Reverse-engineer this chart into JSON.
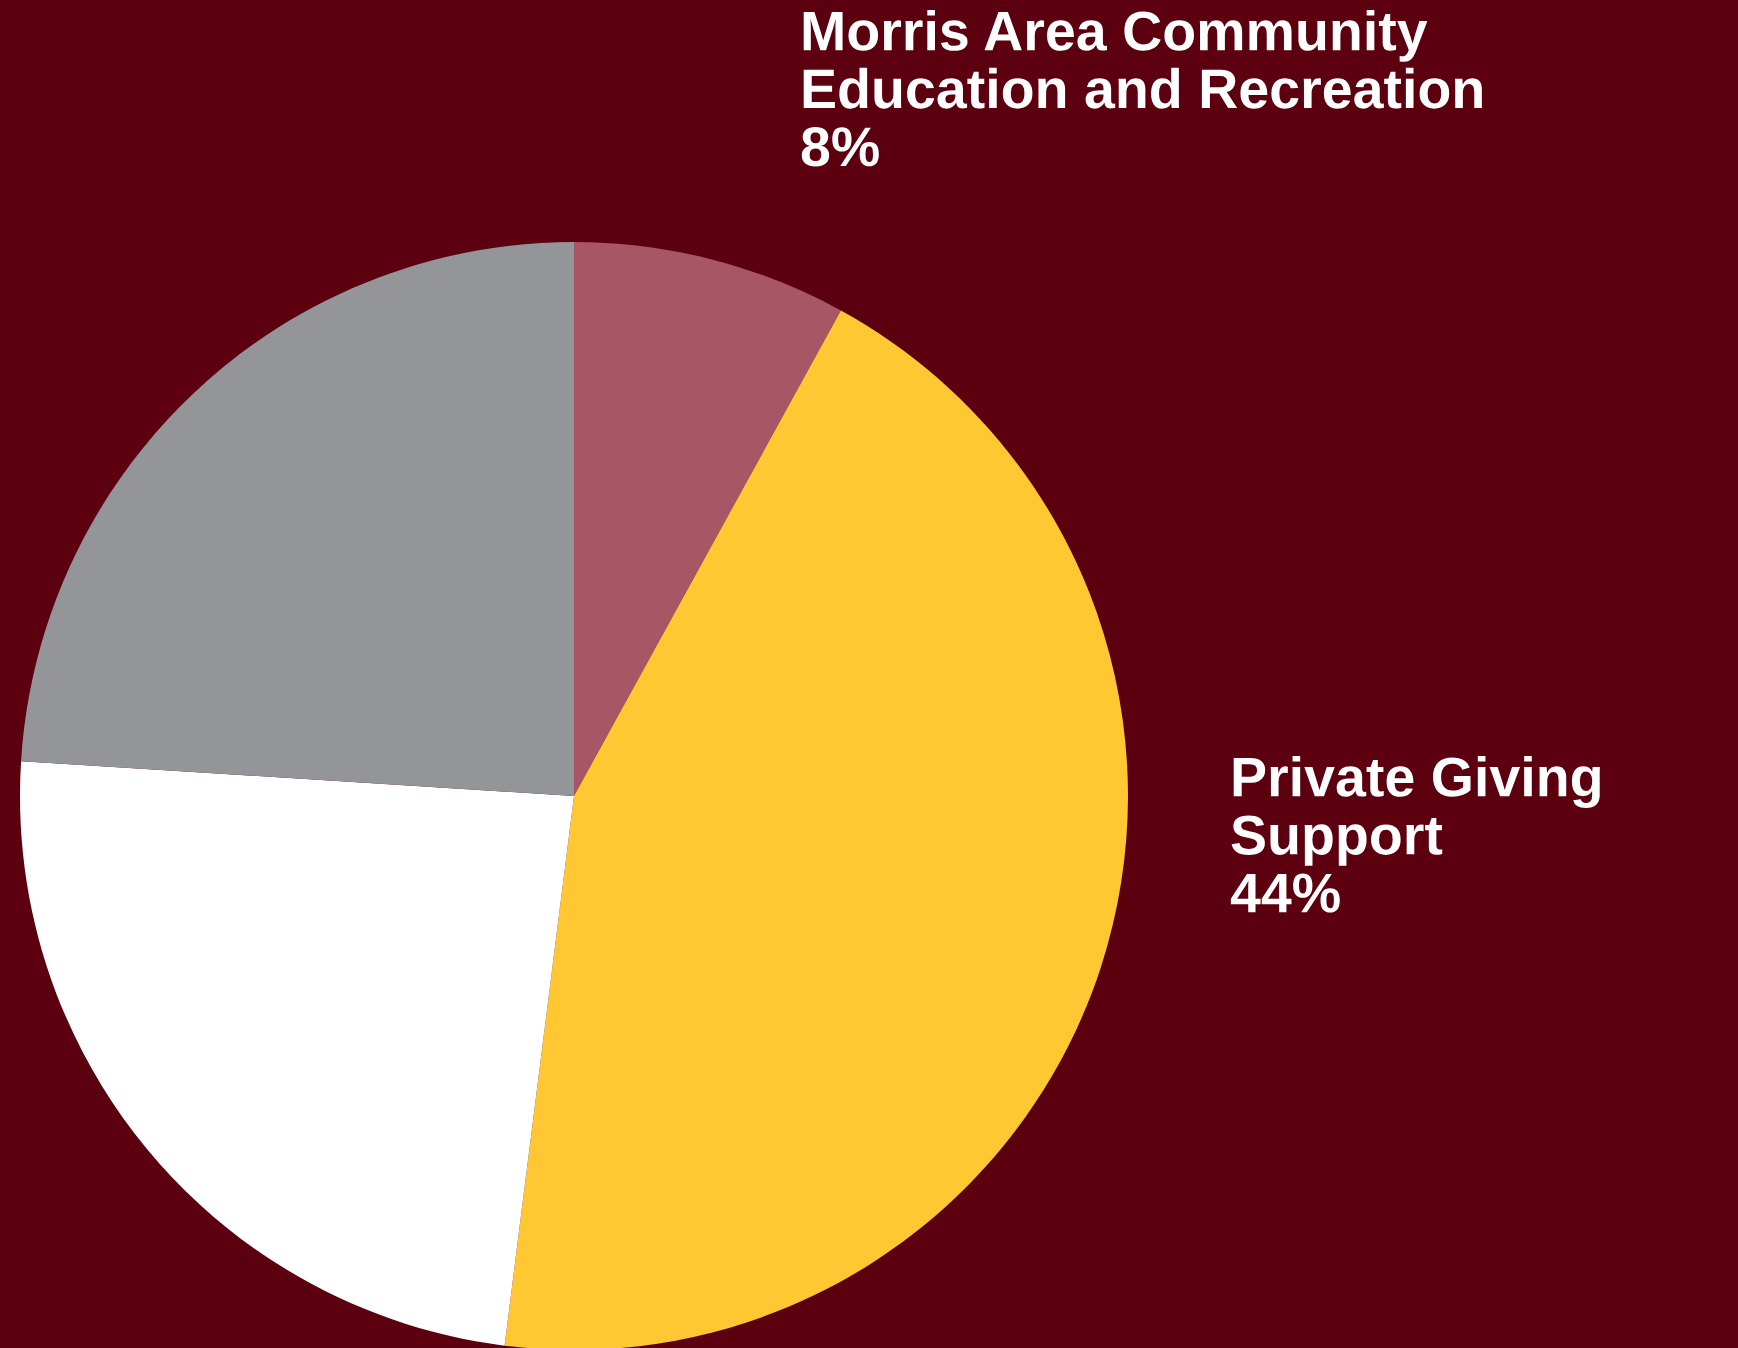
{
  "chart_data": {
    "type": "pie",
    "categories": [
      "Morris Area Community\nEducation and Recreation",
      "Private Giving\nSupport",
      null,
      null
    ],
    "values": [
      8,
      44,
      24,
      24
    ],
    "value_labels": [
      "8%",
      "44%",
      null,
      null
    ],
    "colors": [
      "#a85565",
      "#ffc832",
      "#ffffff",
      "#939598"
    ],
    "legend": false
  }
}
